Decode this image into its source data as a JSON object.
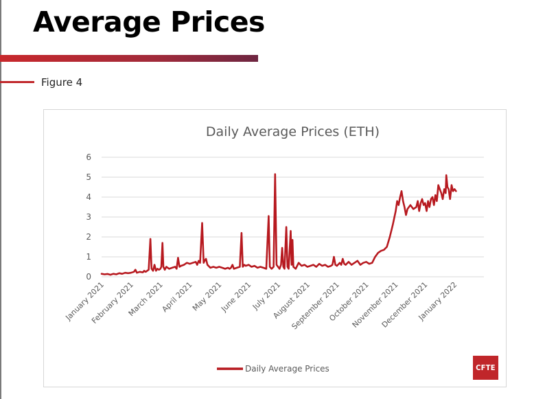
{
  "page": {
    "title": "Average Prices",
    "figure_label": "Figure 4",
    "logo_text": "CFTE"
  },
  "colors": {
    "series": "#b7191f",
    "accent": "#c8282c",
    "grid": "#d9d9d9",
    "axis_text": "#595959"
  },
  "chart_data": {
    "type": "line",
    "title": "Daily Average Prices (ETH)",
    "xlabel": "",
    "ylabel": "",
    "ylim": [
      0,
      6
    ],
    "yticks": [
      0,
      1,
      2,
      3,
      4,
      5,
      6
    ],
    "grid": true,
    "legend_position": "bottom-center",
    "categories": [
      "January 2021",
      "February 2021",
      "March 2021",
      "April 2021",
      "May 2021",
      "June 2021",
      "July 2021",
      "August 2021",
      "September 2021",
      "October 2021",
      "November 2021",
      "December 2021",
      "January 2022"
    ],
    "series": [
      {
        "name": "Daily Average Prices",
        "points": [
          [
            0,
            0.15
          ],
          [
            0.1,
            0.12
          ],
          [
            0.2,
            0.14
          ],
          [
            0.3,
            0.1
          ],
          [
            0.4,
            0.15
          ],
          [
            0.5,
            0.12
          ],
          [
            0.6,
            0.18
          ],
          [
            0.7,
            0.15
          ],
          [
            0.8,
            0.2
          ],
          [
            0.9,
            0.18
          ],
          [
            1.0,
            0.2
          ],
          [
            1.1,
            0.25
          ],
          [
            1.15,
            0.35
          ],
          [
            1.2,
            0.2
          ],
          [
            1.3,
            0.25
          ],
          [
            1.4,
            0.22
          ],
          [
            1.45,
            0.3
          ],
          [
            1.5,
            0.25
          ],
          [
            1.55,
            0.3
          ],
          [
            1.6,
            0.35
          ],
          [
            1.66,
            1.9
          ],
          [
            1.7,
            0.4
          ],
          [
            1.75,
            0.3
          ],
          [
            1.8,
            0.6
          ],
          [
            1.85,
            0.3
          ],
          [
            1.9,
            0.4
          ],
          [
            1.95,
            0.35
          ],
          [
            2.0,
            0.4
          ],
          [
            2.03,
            0.5
          ],
          [
            2.07,
            1.7
          ],
          [
            2.1,
            0.5
          ],
          [
            2.15,
            0.35
          ],
          [
            2.2,
            0.5
          ],
          [
            2.3,
            0.4
          ],
          [
            2.4,
            0.45
          ],
          [
            2.5,
            0.5
          ],
          [
            2.55,
            0.4
          ],
          [
            2.6,
            0.95
          ],
          [
            2.65,
            0.5
          ],
          [
            2.7,
            0.55
          ],
          [
            2.8,
            0.6
          ],
          [
            2.9,
            0.7
          ],
          [
            3.0,
            0.65
          ],
          [
            3.1,
            0.7
          ],
          [
            3.2,
            0.75
          ],
          [
            3.25,
            0.6
          ],
          [
            3.3,
            0.8
          ],
          [
            3.35,
            0.7
          ],
          [
            3.42,
            2.7
          ],
          [
            3.47,
            0.7
          ],
          [
            3.5,
            0.8
          ],
          [
            3.55,
            0.9
          ],
          [
            3.6,
            0.6
          ],
          [
            3.7,
            0.45
          ],
          [
            3.8,
            0.5
          ],
          [
            3.9,
            0.45
          ],
          [
            4.0,
            0.5
          ],
          [
            4.1,
            0.45
          ],
          [
            4.2,
            0.4
          ],
          [
            4.3,
            0.45
          ],
          [
            4.35,
            0.4
          ],
          [
            4.4,
            0.45
          ],
          [
            4.45,
            0.6
          ],
          [
            4.5,
            0.4
          ],
          [
            4.6,
            0.45
          ],
          [
            4.7,
            0.5
          ],
          [
            4.76,
            2.2
          ],
          [
            4.8,
            0.5
          ],
          [
            4.85,
            0.6
          ],
          [
            4.9,
            0.55
          ],
          [
            5.0,
            0.6
          ],
          [
            5.1,
            0.5
          ],
          [
            5.2,
            0.55
          ],
          [
            5.3,
            0.45
          ],
          [
            5.4,
            0.5
          ],
          [
            5.5,
            0.45
          ],
          [
            5.6,
            0.4
          ],
          [
            5.68,
            3.05
          ],
          [
            5.72,
            0.5
          ],
          [
            5.78,
            0.4
          ],
          [
            5.85,
            0.5
          ],
          [
            5.9,
            5.15
          ],
          [
            5.95,
            0.6
          ],
          [
            6.0,
            0.5
          ],
          [
            6.05,
            0.4
          ],
          [
            6.1,
            0.6
          ],
          [
            6.14,
            1.45
          ],
          [
            6.18,
            0.5
          ],
          [
            6.22,
            0.4
          ],
          [
            6.28,
            2.5
          ],
          [
            6.32,
            0.5
          ],
          [
            6.36,
            0.4
          ],
          [
            6.43,
            2.3
          ],
          [
            6.46,
            0.6
          ],
          [
            6.49,
            1.85
          ],
          [
            6.52,
            0.5
          ],
          [
            6.6,
            0.4
          ],
          [
            6.7,
            0.7
          ],
          [
            6.8,
            0.55
          ],
          [
            6.9,
            0.6
          ],
          [
            7.0,
            0.5
          ],
          [
            7.1,
            0.55
          ],
          [
            7.2,
            0.6
          ],
          [
            7.3,
            0.5
          ],
          [
            7.4,
            0.65
          ],
          [
            7.5,
            0.55
          ],
          [
            7.6,
            0.6
          ],
          [
            7.7,
            0.5
          ],
          [
            7.8,
            0.55
          ],
          [
            7.85,
            0.6
          ],
          [
            7.9,
            1.0
          ],
          [
            7.95,
            0.6
          ],
          [
            8.0,
            0.55
          ],
          [
            8.1,
            0.7
          ],
          [
            8.15,
            0.6
          ],
          [
            8.2,
            0.9
          ],
          [
            8.25,
            0.65
          ],
          [
            8.3,
            0.6
          ],
          [
            8.4,
            0.75
          ],
          [
            8.5,
            0.6
          ],
          [
            8.6,
            0.7
          ],
          [
            8.7,
            0.8
          ],
          [
            8.8,
            0.6
          ],
          [
            8.9,
            0.7
          ],
          [
            9.0,
            0.75
          ],
          [
            9.1,
            0.65
          ],
          [
            9.2,
            0.7
          ],
          [
            9.3,
            1.0
          ],
          [
            9.4,
            1.2
          ],
          [
            9.5,
            1.3
          ],
          [
            9.6,
            1.35
          ],
          [
            9.7,
            1.5
          ],
          [
            9.8,
            2.0
          ],
          [
            9.9,
            2.6
          ],
          [
            10.0,
            3.3
          ],
          [
            10.05,
            3.8
          ],
          [
            10.1,
            3.6
          ],
          [
            10.15,
            4.0
          ],
          [
            10.2,
            4.3
          ],
          [
            10.25,
            3.8
          ],
          [
            10.3,
            3.5
          ],
          [
            10.35,
            3.1
          ],
          [
            10.4,
            3.4
          ],
          [
            10.5,
            3.6
          ],
          [
            10.6,
            3.4
          ],
          [
            10.7,
            3.5
          ],
          [
            10.75,
            3.8
          ],
          [
            10.8,
            3.3
          ],
          [
            10.85,
            3.7
          ],
          [
            10.9,
            3.9
          ],
          [
            10.95,
            3.6
          ],
          [
            11.0,
            3.7
          ],
          [
            11.05,
            3.3
          ],
          [
            11.1,
            3.8
          ],
          [
            11.15,
            3.5
          ],
          [
            11.2,
            3.9
          ],
          [
            11.25,
            4.0
          ],
          [
            11.3,
            3.6
          ],
          [
            11.35,
            4.1
          ],
          [
            11.4,
            3.8
          ],
          [
            11.45,
            4.6
          ],
          [
            11.5,
            4.4
          ],
          [
            11.55,
            4.2
          ],
          [
            11.6,
            3.9
          ],
          [
            11.65,
            4.4
          ],
          [
            11.7,
            4.2
          ],
          [
            11.72,
            5.1
          ],
          [
            11.76,
            4.5
          ],
          [
            11.8,
            4.4
          ],
          [
            11.85,
            3.9
          ],
          [
            11.9,
            4.6
          ],
          [
            11.95,
            4.3
          ],
          [
            12.0,
            4.4
          ],
          [
            12.05,
            4.3
          ]
        ]
      }
    ]
  }
}
